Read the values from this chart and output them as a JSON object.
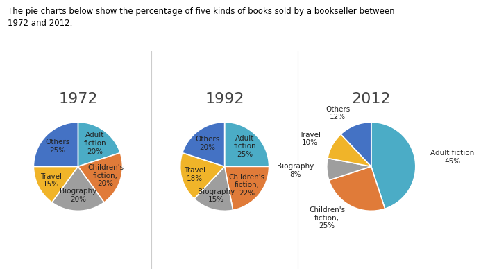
{
  "title": "The pie charts below show the percentage of five kinds of books sold by a bookseller between\n1972 and 2012.",
  "years": [
    "1972",
    "1992",
    "2012"
  ],
  "data": {
    "1972": [
      20,
      20,
      20,
      15,
      25
    ],
    "1992": [
      25,
      22,
      15,
      18,
      20
    ],
    "2012": [
      45,
      25,
      8,
      10,
      12
    ]
  },
  "labels": {
    "1972": [
      "Adult\nfiction\n20%",
      "Children's\nfiction,\n20%",
      "Biography\n20%",
      "Travel\n15%",
      "Others\n25%"
    ],
    "1992": [
      "Adult\nfiction\n25%",
      "Children's\nfiction,\n22%",
      "Biography\n15%",
      "Travel\n18%",
      "Others\n20%"
    ],
    "2012": [
      "Adult fiction\n45%",
      "Children's\nfiction,\n25%",
      "Biography\n8%",
      "Travel\n10%",
      "Others\n12%"
    ]
  },
  "pie_colors": [
    "#4BACC6",
    "#E07B39",
    "#9E9E9E",
    "#F0B429",
    "#4472C4"
  ],
  "background_color": "#FFFFFF",
  "title_fontsize": 8.5,
  "label_fontsize": 7.5,
  "year_fontsize": 16
}
